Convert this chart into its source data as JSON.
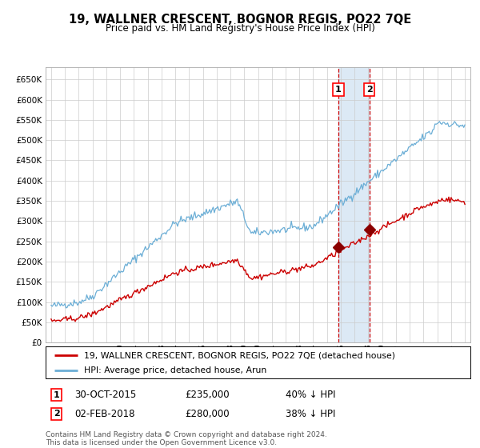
{
  "title": "19, WALLNER CRESCENT, BOGNOR REGIS, PO22 7QE",
  "subtitle": "Price paid vs. HM Land Registry's House Price Index (HPI)",
  "legend_line1": "19, WALLNER CRESCENT, BOGNOR REGIS, PO22 7QE (detached house)",
  "legend_line2": "HPI: Average price, detached house, Arun",
  "sale1_date": "30-OCT-2015",
  "sale1_price": 235000,
  "sale1_label": "40% ↓ HPI",
  "sale2_date": "02-FEB-2018",
  "sale2_price": 280000,
  "sale2_label": "38% ↓ HPI",
  "footnote1": "Contains HM Land Registry data © Crown copyright and database right 2024.",
  "footnote2": "This data is licensed under the Open Government Licence v3.0.",
  "hpi_color": "#6baed6",
  "price_color": "#cc0000",
  "sale_marker_color": "#8b0000",
  "shade_color": "#dce9f5",
  "dashed_line_color": "#cc0000",
  "background_color": "#ffffff",
  "grid_color": "#cccccc",
  "ylim": [
    0,
    680000
  ],
  "ytick_step": 50000,
  "sale1_year": 2015.83,
  "sale2_year": 2018.08,
  "xmin": 1995.0,
  "xmax": 2025.0
}
